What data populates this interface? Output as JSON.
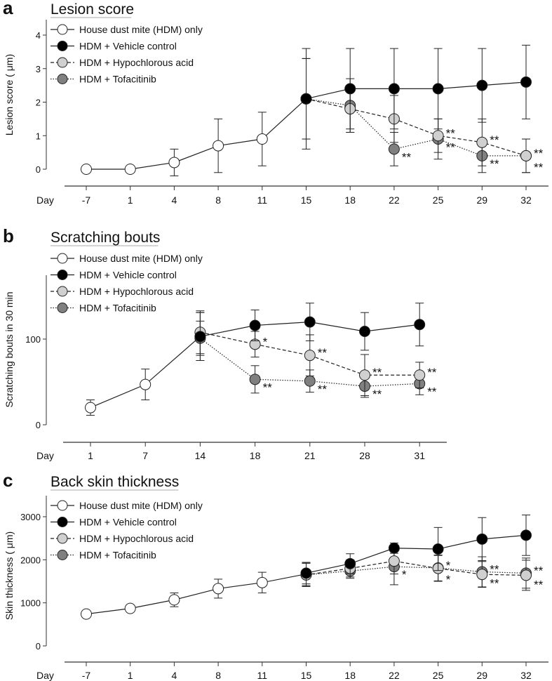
{
  "series_styles": [
    {
      "name": "House dust mite (HDM) only",
      "fill": "#ffffff",
      "dash": ""
    },
    {
      "name": "HDM + Vehicle control",
      "fill": "#000000",
      "dash": ""
    },
    {
      "name": "HDM + Hypochlorous acid",
      "fill": "#d0d0d0",
      "dash": "5,3"
    },
    {
      "name": "HDM + Tofacitinib",
      "fill": "#808080",
      "dash": "1.5,2"
    }
  ],
  "chart_data": [
    {
      "type": "line",
      "panel_label": "a",
      "title": "Lesion score",
      "ylabel": "Lesion score ( μm)",
      "xlabel": "Day",
      "categories": [
        "-7",
        "1",
        "4",
        "8",
        "11",
        "15",
        "18",
        "22",
        "25",
        "29",
        "32"
      ],
      "yticks": [
        0,
        1,
        2,
        3,
        4
      ],
      "ylim": [
        0,
        4.5
      ],
      "series": [
        {
          "name": "House dust mite (HDM) only",
          "values": [
            0,
            0,
            0.2,
            0.7,
            0.9,
            2.1,
            null,
            null,
            null,
            null,
            null
          ],
          "err": [
            0,
            0,
            0.4,
            0.8,
            0.8,
            1.5,
            null,
            null,
            null,
            null,
            null
          ],
          "stars": []
        },
        {
          "name": "HDM + Vehicle control",
          "values": [
            null,
            null,
            null,
            null,
            null,
            2.1,
            2.4,
            2.4,
            2.4,
            2.5,
            2.6
          ],
          "err": [
            null,
            null,
            null,
            null,
            null,
            1.2,
            1.2,
            1.2,
            1.2,
            1.1,
            1.1
          ],
          "stars": []
        },
        {
          "name": "HDM + Hypochlorous acid",
          "values": [
            null,
            null,
            null,
            null,
            null,
            2.1,
            1.8,
            1.5,
            1.0,
            0.8,
            0.4
          ],
          "err": [
            null,
            null,
            null,
            null,
            null,
            1.2,
            0.7,
            0.7,
            0.5,
            0.7,
            0.5
          ],
          "stars": [
            null,
            null,
            null,
            null,
            null,
            null,
            null,
            null,
            "**",
            "**",
            "**"
          ]
        },
        {
          "name": "HDM + Tofacitinib",
          "values": [
            null,
            null,
            null,
            null,
            null,
            2.1,
            1.9,
            0.6,
            0.9,
            0.4,
            0.4
          ],
          "err": [
            null,
            null,
            null,
            null,
            null,
            1.2,
            0.8,
            0.5,
            0.6,
            0.5,
            0.5
          ],
          "stars": [
            null,
            null,
            null,
            null,
            null,
            null,
            null,
            "**",
            "**",
            "**",
            "**"
          ]
        }
      ]
    },
    {
      "type": "line",
      "panel_label": "b",
      "title": "Scratching bouts",
      "ylabel": "Scratching bouts in 30 min",
      "xlabel": "Day",
      "categories": [
        "1",
        "7",
        "14",
        "18",
        "21",
        "28",
        "31"
      ],
      "yticks": [
        0,
        100
      ],
      "ylim": [
        0,
        175
      ],
      "series": [
        {
          "name": "House dust mite (HDM) only",
          "values": [
            20,
            47,
            103,
            null,
            null,
            null,
            null
          ],
          "err": [
            9,
            18,
            28,
            null,
            null,
            null,
            null
          ],
          "stars": []
        },
        {
          "name": "HDM + Vehicle control",
          "values": [
            null,
            null,
            103,
            116,
            120,
            109,
            117
          ],
          "err": [
            null,
            null,
            28,
            18,
            22,
            22,
            25
          ],
          "stars": []
        },
        {
          "name": "HDM + Hypochlorous acid",
          "values": [
            null,
            null,
            108,
            94,
            81,
            58,
            58
          ],
          "err": [
            null,
            null,
            25,
            15,
            24,
            24,
            15
          ],
          "stars": [
            null,
            null,
            null,
            "*",
            "**",
            "**",
            "**"
          ]
        },
        {
          "name": "HDM + Tofacitinib",
          "values": [
            null,
            null,
            101,
            53,
            51,
            45,
            48
          ],
          "err": [
            null,
            null,
            20,
            16,
            13,
            13,
            13
          ],
          "stars": [
            null,
            null,
            null,
            "**",
            "**",
            "**",
            "**"
          ]
        }
      ]
    },
    {
      "type": "line",
      "panel_label": "c",
      "title": "Back skin thickness",
      "ylabel": "Skin thickness ( μm)",
      "xlabel": "Day",
      "categories": [
        "-7",
        "1",
        "4",
        "8",
        "11",
        "15",
        "18",
        "22",
        "25",
        "29",
        "32"
      ],
      "yticks": [
        0,
        1000,
        2000,
        3000
      ],
      "ylim": [
        0,
        3500
      ],
      "series": [
        {
          "name": "House dust mite (HDM) only",
          "values": [
            740,
            870,
            1070,
            1330,
            1470,
            1670,
            null,
            null,
            null,
            null,
            null
          ],
          "err": [
            0,
            0,
            160,
            220,
            240,
            270,
            null,
            null,
            null,
            null,
            null
          ],
          "stars": []
        },
        {
          "name": "HDM + Vehicle control",
          "values": [
            null,
            null,
            null,
            null,
            null,
            1690,
            1910,
            2270,
            2250,
            2480,
            2570
          ],
          "err": [
            null,
            null,
            null,
            null,
            null,
            250,
            230,
            120,
            500,
            500,
            470
          ],
          "stars": []
        },
        {
          "name": "HDM + Hypochlorous acid",
          "values": [
            null,
            null,
            null,
            null,
            null,
            1650,
            1800,
            1970,
            1800,
            1660,
            1640
          ],
          "err": [
            null,
            null,
            null,
            null,
            null,
            270,
            200,
            300,
            300,
            300,
            350
          ],
          "stars": [
            null,
            null,
            null,
            null,
            null,
            null,
            null,
            null,
            "*",
            "**",
            "**"
          ]
        },
        {
          "name": "HDM + Tofacitinib",
          "values": [
            null,
            null,
            null,
            null,
            null,
            1650,
            1740,
            1840,
            1810,
            1720,
            1690
          ],
          "err": [
            null,
            null,
            null,
            null,
            null,
            270,
            170,
            420,
            300,
            350,
            350
          ],
          "stars": [
            null,
            null,
            null,
            null,
            null,
            null,
            null,
            "*",
            "*",
            "**",
            "**"
          ]
        }
      ]
    }
  ]
}
